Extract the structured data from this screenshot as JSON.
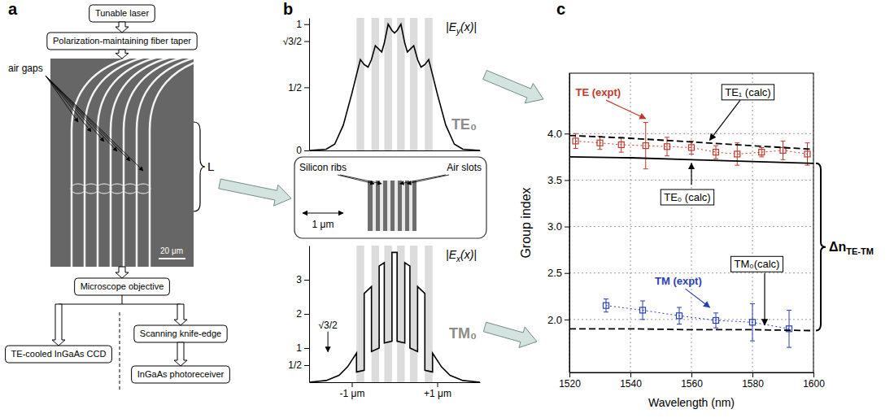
{
  "panel_labels": [
    "a",
    "b",
    "c"
  ],
  "diagram": {
    "boxes": [
      "Tunable laser",
      "Polarization-maintaining fiber taper",
      "Microscope objective",
      "TE-cooled InGaAs CCD",
      "Scanning knife-edge",
      "InGaAs photoreceiver"
    ],
    "image_labels": {
      "air_gaps": "air gaps",
      "length": "L",
      "scale_bar": "20 μm"
    },
    "inset": {
      "labels": [
        "Silicon ribs",
        "Air slots"
      ],
      "scale_bar": "1 μm"
    }
  },
  "chart_data": [
    {
      "type": "line",
      "title": "TE₀",
      "ylabel": {
        "text": "|E",
        "sub": "y",
        "after": "(x)|"
      },
      "xlim": [
        -2,
        2
      ],
      "ylim": [
        0,
        1.05
      ],
      "yticks": [
        0,
        {
          "value": 0.5,
          "label": "1/2"
        },
        {
          "value": 0.866,
          "label": "√3/2"
        },
        1
      ],
      "tick_labels": "y",
      "bands": [
        [
          -0.89,
          -0.71
        ],
        [
          -0.54,
          -0.36
        ],
        [
          -0.24,
          -0.06
        ],
        [
          0.06,
          0.24
        ],
        [
          0.36,
          0.54
        ],
        [
          0.71,
          0.89
        ]
      ],
      "x": [
        -2,
        -1.6,
        -1.4,
        -1.2,
        -1.0,
        -0.89,
        -0.8,
        -0.71,
        -0.62,
        -0.54,
        -0.45,
        -0.36,
        -0.3,
        -0.24,
        -0.15,
        -0.06,
        0,
        0.06,
        0.15,
        0.24,
        0.3,
        0.36,
        0.45,
        0.54,
        0.62,
        0.71,
        0.8,
        0.89,
        1.0,
        1.2,
        1.4,
        1.6,
        2
      ],
      "series": [
        {
          "color": "#000000",
          "values": [
            0,
            0.01,
            0.05,
            0.2,
            0.45,
            0.6,
            0.72,
            0.68,
            0.66,
            0.72,
            0.83,
            0.8,
            0.78,
            0.85,
            1.0,
            0.95,
            0.93,
            0.95,
            1.0,
            0.85,
            0.78,
            0.8,
            0.83,
            0.72,
            0.66,
            0.68,
            0.72,
            0.6,
            0.45,
            0.2,
            0.05,
            0.01,
            0
          ]
        }
      ]
    },
    {
      "type": "line",
      "title": "TM₀",
      "ylabel": {
        "text": "|E",
        "sub": "x",
        "after": "(x)|"
      },
      "xlim": [
        -2,
        2
      ],
      "ylim": [
        0,
        4
      ],
      "xticks": [
        {
          "value": -1,
          "label": "-1 μm"
        },
        {
          "value": 1,
          "label": "+1 μm"
        }
      ],
      "yticks": [
        {
          "value": 0.5,
          "label": "1/2"
        },
        1,
        2,
        3
      ],
      "bands": [
        [
          -0.89,
          -0.71
        ],
        [
          -0.54,
          -0.36
        ],
        [
          -0.24,
          -0.06
        ],
        [
          0.06,
          0.24
        ],
        [
          0.36,
          0.54
        ],
        [
          0.71,
          0.89
        ]
      ],
      "x": [
        -2,
        -1.6,
        -1.3,
        -1.1,
        -0.89,
        -0.89,
        -0.71,
        -0.71,
        -0.54,
        -0.54,
        -0.36,
        -0.36,
        -0.24,
        -0.24,
        -0.06,
        -0.06,
        0.06,
        0.06,
        0.24,
        0.24,
        0.36,
        0.36,
        0.54,
        0.54,
        0.71,
        0.71,
        0.89,
        0.89,
        1.1,
        1.3,
        1.6,
        2
      ],
      "series": [
        {
          "color": "#000000",
          "values": [
            0,
            0.05,
            0.2,
            0.45,
            0.85,
            0.3,
            0.35,
            2.6,
            2.8,
            0.9,
            1.0,
            3.4,
            3.5,
            1.15,
            1.2,
            3.8,
            3.8,
            1.2,
            1.15,
            3.5,
            3.4,
            1.0,
            0.9,
            2.8,
            2.6,
            0.35,
            0.3,
            0.85,
            0.45,
            0.2,
            0.05,
            0
          ]
        }
      ],
      "annotations": [
        {
          "text": "√3/2",
          "y": 0.866
        }
      ]
    },
    {
      "type": "line",
      "xlabel": "Wavelength (nm)",
      "ylabel": "Group index",
      "xlim": [
        1520,
        1600
      ],
      "ylim": [
        1.43,
        4.65
      ],
      "xticks": [
        1520,
        1540,
        1560,
        1580,
        1600
      ],
      "yticks": [
        {
          "value": 2,
          "label": "2.0"
        },
        2.5,
        {
          "value": 3,
          "label": "3.0"
        },
        3.5,
        {
          "value": 4,
          "label": "4.0"
        }
      ],
      "grid": true,
      "series": [
        {
          "name": "TE (expt)",
          "type": "scatter",
          "color": "#c0392b",
          "marker": "square",
          "line_style": "dotted",
          "x": [
            1522,
            1530,
            1537,
            1545,
            1552,
            1560,
            1568,
            1575,
            1583,
            1590,
            1598
          ],
          "values": [
            3.92,
            3.9,
            3.88,
            3.87,
            3.86,
            3.85,
            3.8,
            3.78,
            3.8,
            3.82,
            3.78
          ],
          "errors": [
            0.08,
            0.07,
            0.08,
            0.25,
            0.1,
            0.07,
            0.07,
            0.12,
            0.05,
            0.1,
            0.12
          ]
        },
        {
          "name": "TM (expt)",
          "type": "scatter",
          "color": "#2b3fb5",
          "marker": "square",
          "line_style": "dotted",
          "x": [
            1532,
            1544,
            1556,
            1568,
            1580,
            1592
          ],
          "values": [
            2.15,
            2.1,
            2.04,
            1.99,
            1.97,
            1.9
          ],
          "errors": [
            0.07,
            0.1,
            0.09,
            0.08,
            0.2,
            0.2
          ]
        },
        {
          "name": "TE₁ (calc)",
          "type": "line",
          "color": "#000000",
          "line_style": "dashed",
          "x": [
            1520,
            1540,
            1560,
            1580,
            1600
          ],
          "values": [
            3.98,
            3.95,
            3.91,
            3.87,
            3.83
          ]
        },
        {
          "name": "TE₀ (calc)",
          "type": "line",
          "color": "#000000",
          "line_style": "solid",
          "x": [
            1520,
            1540,
            1560,
            1580,
            1600
          ],
          "values": [
            3.75,
            3.74,
            3.72,
            3.7,
            3.68
          ]
        },
        {
          "name": "TM₀(calc)",
          "type": "line",
          "color": "#000000",
          "line_style": "dashed",
          "x": [
            1520,
            1540,
            1560,
            1580,
            1600
          ],
          "values": [
            1.9,
            1.9,
            1.89,
            1.89,
            1.88
          ]
        }
      ],
      "annotations": [
        {
          "text": "Δn",
          "sub": "TE-TM"
        }
      ]
    }
  ]
}
